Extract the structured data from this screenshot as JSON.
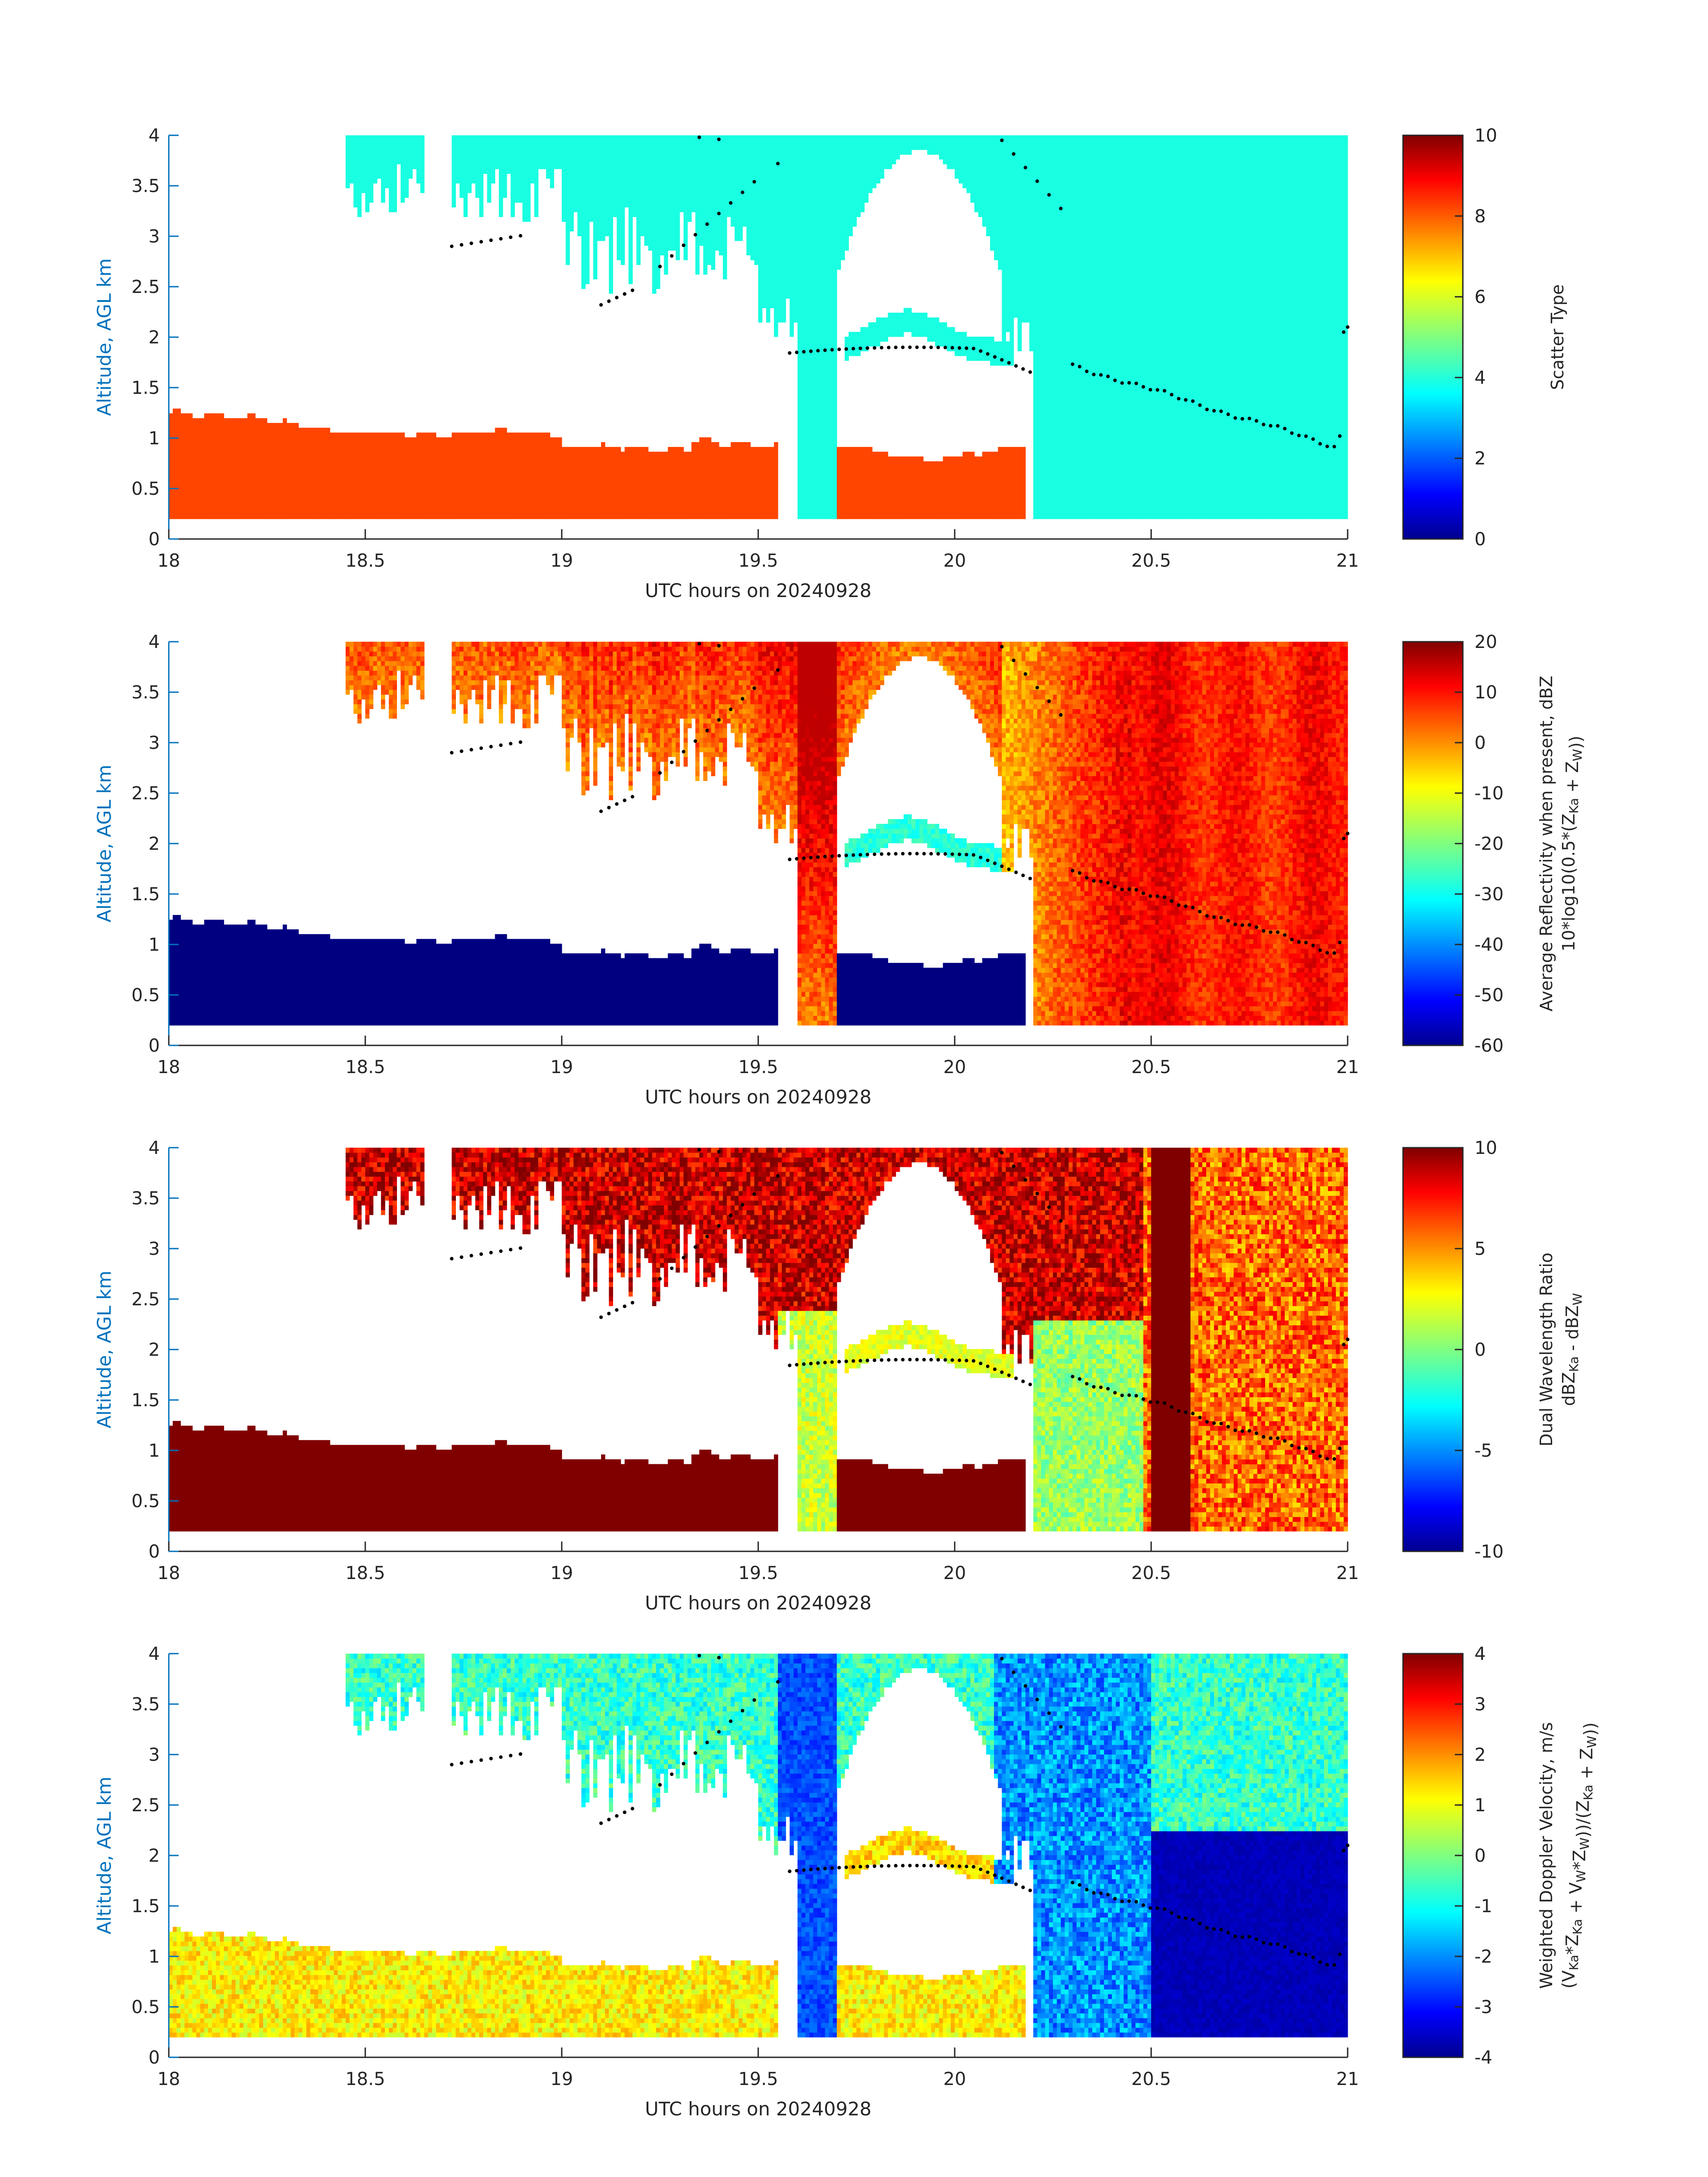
{
  "chart_data": [
    {
      "type": "heatmap",
      "id": "scatter",
      "xlabel": "UTC hours on 20240928",
      "ylabel": "Altitude, AGL km",
      "xlim": [
        18,
        21
      ],
      "ylim": [
        0,
        4
      ],
      "xticks": [
        "18",
        "18.5",
        "19",
        "19.5",
        "20",
        "20.5",
        "21"
      ],
      "yticks": [
        "0",
        "0.5",
        "1",
        "1.5",
        "2",
        "2.5",
        "3",
        "3.5",
        "4"
      ],
      "colorbar": {
        "label_lines": [
          "Scatter Type"
        ],
        "ticks": [
          "0",
          "2",
          "4",
          "6",
          "8",
          "10"
        ],
        "range": [
          0,
          10
        ],
        "colormap": "jet"
      }
    },
    {
      "type": "heatmap",
      "id": "reflectivity",
      "xlabel": "UTC hours on 20240928",
      "ylabel": "Altitude, AGL km",
      "xlim": [
        18,
        21
      ],
      "ylim": [
        0,
        4
      ],
      "xticks": [
        "18",
        "18.5",
        "19",
        "19.5",
        "20",
        "20.5",
        "21"
      ],
      "yticks": [
        "0",
        "0.5",
        "1",
        "1.5",
        "2",
        "2.5",
        "3",
        "3.5",
        "4"
      ],
      "colorbar": {
        "label_lines": [
          "Average Reflectivity when present, dBZ",
          "10*log10(0.5*(Z_Ka + Z_W))"
        ],
        "ticks": [
          "-60",
          "-50",
          "-40",
          "-30",
          "-20",
          "-10",
          "0",
          "10",
          "20"
        ],
        "range": [
          -60,
          20
        ],
        "colormap": "jet"
      }
    },
    {
      "type": "heatmap",
      "id": "dwr",
      "xlabel": "UTC hours on 20240928",
      "ylabel": "Altitude, AGL km",
      "xlim": [
        18,
        21
      ],
      "ylim": [
        0,
        4
      ],
      "xticks": [
        "18",
        "18.5",
        "19",
        "19.5",
        "20",
        "20.5",
        "21"
      ],
      "yticks": [
        "0",
        "0.5",
        "1",
        "1.5",
        "2",
        "2.5",
        "3",
        "3.5",
        "4"
      ],
      "colorbar": {
        "label_lines": [
          "Dual Wavelength Ratio",
          "dBZ_Ka - dBZ_W"
        ],
        "ticks": [
          "-10",
          "-5",
          "0",
          "5",
          "10"
        ],
        "range": [
          -10,
          10
        ],
        "colormap": "jet"
      }
    },
    {
      "type": "heatmap",
      "id": "doppler",
      "xlabel": "UTC hours on 20240928",
      "ylabel": "Altitude, AGL km",
      "xlim": [
        18,
        21
      ],
      "ylim": [
        0,
        4
      ],
      "xticks": [
        "18",
        "18.5",
        "19",
        "19.5",
        "20",
        "20.5",
        "21"
      ],
      "yticks": [
        "0",
        "0.5",
        "1",
        "1.5",
        "2",
        "2.5",
        "3",
        "3.5",
        "4"
      ],
      "colorbar": {
        "label_lines": [
          "Weighted Doppler Velocity, m/s",
          "(V_Ka*Z_Ka + V_W*Z_W))/(Z_Ka + Z_W))"
        ],
        "ticks": [
          "-4",
          "-3",
          "-2",
          "-1",
          "0",
          "1",
          "2",
          "3",
          "4"
        ],
        "range": [
          -4,
          4
        ],
        "colormap": "jet"
      }
    }
  ],
  "colors": {
    "scatter_cloud": "#19ffe1",
    "scatter_drizzle": "#ff4500",
    "dwr_saturated": "#800000",
    "markers": "#000000",
    "axis_y": "#0072bd",
    "axis_x": "#262626"
  }
}
